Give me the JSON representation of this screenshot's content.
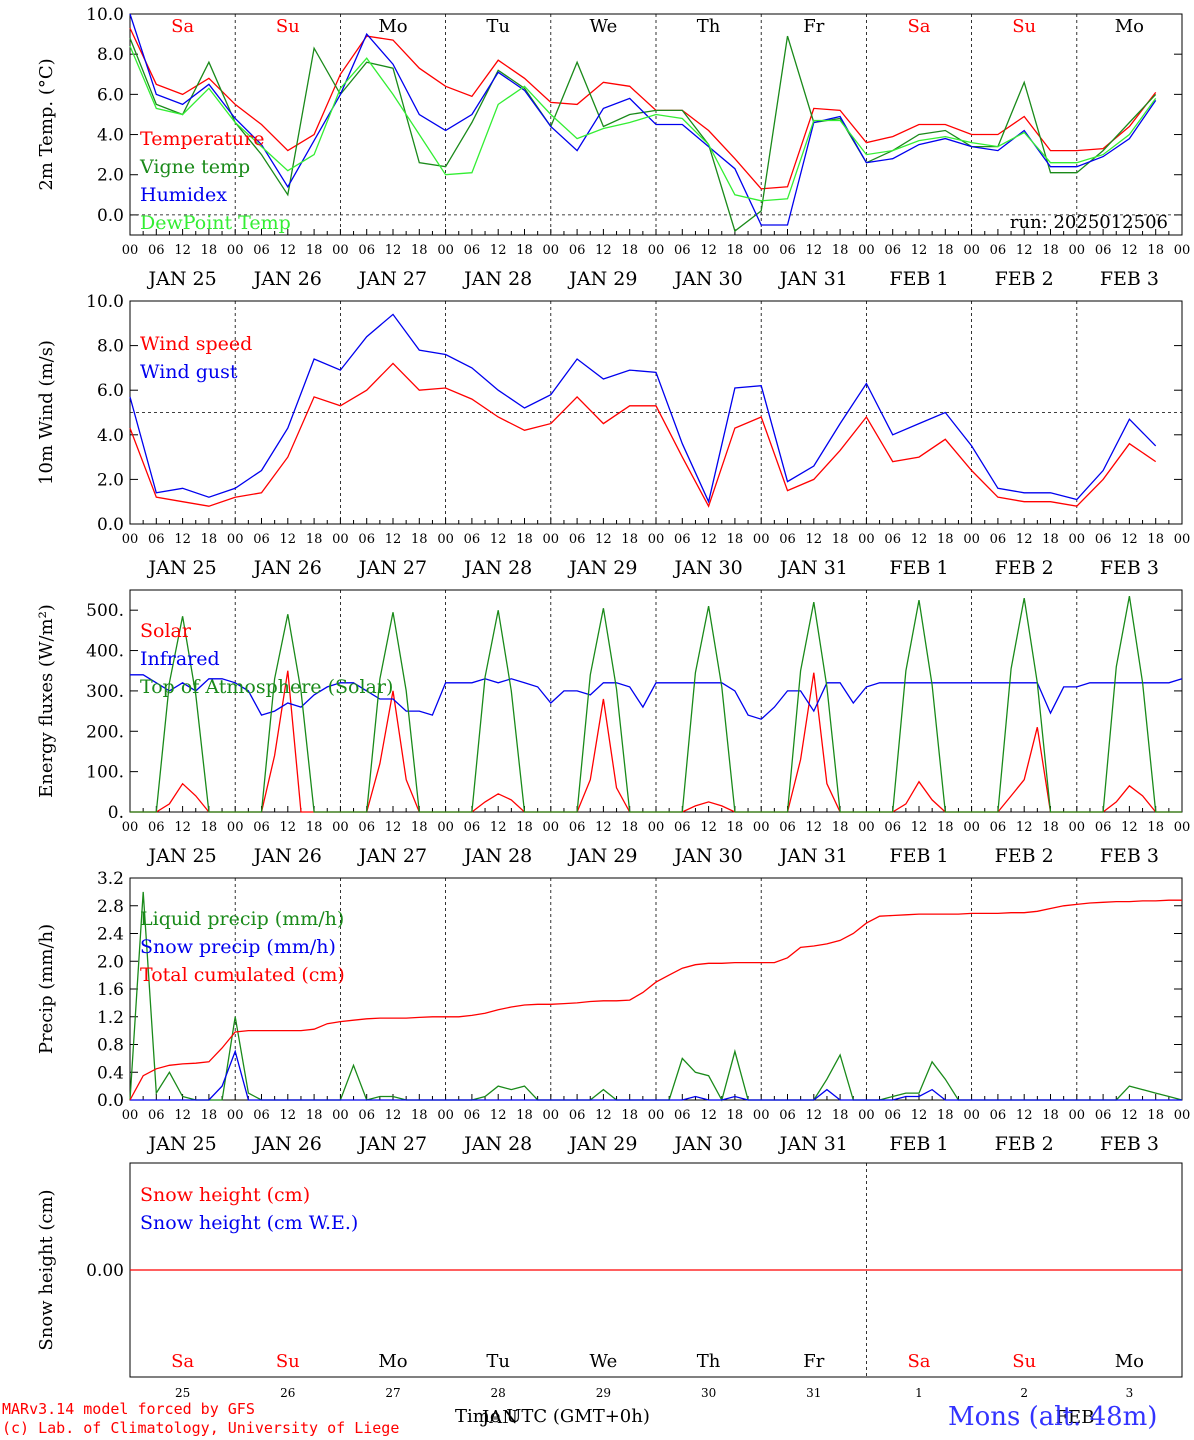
{
  "colors": {
    "red": "#ff0000",
    "green": "#1a8a1a",
    "blue": "#0000ee",
    "lightgreen": "#33ee33",
    "black": "#000000"
  },
  "day_columns": {
    "weekdays": [
      "Sa",
      "Su",
      "Mo",
      "Tu",
      "We",
      "Th",
      "Fr",
      "Sa",
      "Su",
      "Mo"
    ],
    "weekday_colors": [
      "#ff0000",
      "#ff0000",
      "#000000",
      "#000000",
      "#000000",
      "#000000",
      "#000000",
      "#ff0000",
      "#ff0000",
      "#000000"
    ],
    "date_labels": [
      "JAN 25",
      "JAN 26",
      "JAN 27",
      "JAN 28",
      "JAN 29",
      "JAN 30",
      "JAN 31",
      "FEB  1",
      "FEB  2",
      "FEB  3"
    ],
    "hour_labels": [
      "00",
      "06",
      "12",
      "18"
    ],
    "end_hour_label": "00",
    "day_numbers": [
      "25",
      "26",
      "27",
      "28",
      "29",
      "30",
      "31",
      "1",
      "2",
      "3"
    ],
    "month_labels": [
      "JAN",
      "FEB"
    ]
  },
  "footer": {
    "model_line": "MARv3.14 model forced by GFS",
    "lab_line": "(c) Lab. of Climatology, University of Liege",
    "xaxis_title": "Time UTC (GMT+0h)",
    "station": "Mons (alt. 48m)"
  },
  "chart_data": [
    {
      "type": "line",
      "ylabel": "2m Temp. (°C)",
      "ylim": [
        -1,
        10
      ],
      "yticks": [
        "0.0",
        "2.0",
        "4.0",
        "6.0",
        "8.0",
        "10.0"
      ],
      "ytick_values": [
        0,
        2,
        4,
        6,
        8,
        10
      ],
      "reference_line": 0,
      "annotation": "run: 2025012506",
      "x_start": "2025-01-25 00:00 UTC",
      "x_end": "2025-02-04 00:00 UTC",
      "x_step_hours": 6,
      "series": [
        {
          "name": "Temperature",
          "color": "#ff0000",
          "values": [
            9.3,
            6.5,
            6.0,
            6.8,
            5.5,
            4.5,
            3.2,
            4.0,
            7.0,
            8.9,
            8.7,
            7.3,
            6.4,
            5.9,
            7.7,
            6.8,
            5.6,
            5.5,
            6.6,
            6.4,
            5.2,
            5.2,
            4.2,
            2.8,
            1.3,
            1.4,
            5.3,
            5.2,
            3.6,
            3.9,
            4.5,
            4.5,
            4.0,
            4.0,
            4.9,
            3.2,
            3.2,
            3.3,
            4.4,
            6.1
          ]
        },
        {
          "name": "Vigne temp",
          "color": "#1a8a1a",
          "values": [
            8.8,
            5.5,
            5.0,
            7.6,
            4.6,
            3.0,
            1.0,
            8.3,
            6.0,
            7.6,
            7.3,
            2.6,
            2.4,
            4.6,
            7.2,
            6.3,
            4.4,
            7.6,
            4.4,
            5.0,
            5.2,
            5.2,
            3.5,
            -0.8,
            0.2,
            8.9,
            4.6,
            4.8,
            2.6,
            3.2,
            4.0,
            4.2,
            3.4,
            3.4,
            6.6,
            2.1,
            2.1,
            3.2,
            4.6,
            6.0
          ]
        },
        {
          "name": "Humidex",
          "color": "#0000ee",
          "values": [
            10.0,
            6.0,
            5.5,
            6.5,
            4.8,
            3.5,
            1.4,
            3.7,
            6.0,
            9.0,
            7.5,
            5.0,
            4.2,
            5.0,
            7.1,
            6.2,
            4.4,
            3.2,
            5.3,
            5.8,
            4.5,
            4.5,
            3.4,
            2.3,
            -0.5,
            -0.5,
            4.6,
            4.9,
            2.6,
            2.8,
            3.5,
            3.8,
            3.4,
            3.2,
            4.2,
            2.4,
            2.4,
            2.9,
            3.8,
            5.7
          ]
        },
        {
          "name": "DewPoint Temp",
          "color": "#33ee33",
          "values": [
            8.4,
            5.3,
            5.0,
            6.3,
            4.6,
            3.4,
            2.2,
            3.0,
            6.3,
            7.8,
            6.0,
            4.0,
            2.0,
            2.1,
            5.5,
            6.4,
            5.0,
            3.8,
            4.3,
            4.6,
            5.0,
            4.8,
            3.5,
            1.0,
            0.7,
            0.8,
            4.7,
            4.7,
            3.0,
            3.2,
            3.7,
            3.9,
            3.6,
            3.4,
            4.1,
            2.6,
            2.6,
            3.0,
            4.0,
            5.8
          ]
        }
      ]
    },
    {
      "type": "line",
      "ylabel": "10m Wind (m/s)",
      "ylim": [
        0,
        10
      ],
      "yticks": [
        "0.0",
        "2.0",
        "4.0",
        "6.0",
        "8.0",
        "10.0"
      ],
      "ytick_values": [
        0,
        2,
        4,
        6,
        8,
        10
      ],
      "reference_line": 5,
      "x_start": "2025-01-25 00:00 UTC",
      "x_end": "2025-02-04 00:00 UTC",
      "x_step_hours": 6,
      "series": [
        {
          "name": "Wind speed",
          "color": "#ff0000",
          "values": [
            4.3,
            1.2,
            1.0,
            0.8,
            1.2,
            1.4,
            3.0,
            5.7,
            5.3,
            6.0,
            7.2,
            6.0,
            6.1,
            5.6,
            4.8,
            4.2,
            4.5,
            5.7,
            4.5,
            5.3,
            5.3,
            3.0,
            0.8,
            4.3,
            4.8,
            1.5,
            2.0,
            3.3,
            4.8,
            2.8,
            3.0,
            3.8,
            2.4,
            1.2,
            1.0,
            1.0,
            0.8,
            2.0,
            3.6,
            2.8
          ]
        },
        {
          "name": "Wind gust",
          "color": "#0000ee",
          "values": [
            5.7,
            1.4,
            1.6,
            1.2,
            1.6,
            2.4,
            4.3,
            7.4,
            6.9,
            8.4,
            9.4,
            7.8,
            7.6,
            7.0,
            6.0,
            5.2,
            5.8,
            7.4,
            6.5,
            6.9,
            6.8,
            3.6,
            1.0,
            6.1,
            6.2,
            1.9,
            2.6,
            4.5,
            6.3,
            4.0,
            4.5,
            5.0,
            3.5,
            1.6,
            1.4,
            1.4,
            1.1,
            2.4,
            4.7,
            3.5
          ]
        }
      ]
    },
    {
      "type": "line",
      "ylabel": "Energy fluxes (W/m²)",
      "ylim": [
        0,
        550
      ],
      "yticks": [
        "0.",
        "100.",
        "200.",
        "300.",
        "400.",
        "500."
      ],
      "ytick_values": [
        0,
        100,
        200,
        300,
        400,
        500
      ],
      "x_start": "2025-01-25 00:00 UTC",
      "x_end": "2025-02-04 00:00 UTC",
      "x_step_hours": 3,
      "series": [
        {
          "name": "Solar",
          "color": "#ff0000",
          "values": [
            0,
            0,
            0,
            20,
            70,
            40,
            0,
            0,
            0,
            0,
            0,
            140,
            350,
            0,
            0,
            0,
            0,
            0,
            0,
            120,
            300,
            80,
            0,
            0,
            0,
            0,
            0,
            25,
            45,
            30,
            0,
            0,
            0,
            0,
            0,
            80,
            280,
            60,
            0,
            0,
            0,
            0,
            0,
            15,
            25,
            15,
            0,
            0,
            0,
            0,
            0,
            130,
            345,
            70,
            0,
            0,
            0,
            0,
            0,
            20,
            75,
            30,
            0,
            0,
            0,
            0,
            0,
            40,
            80,
            210,
            0,
            0,
            0,
            0,
            0,
            25,
            65,
            40,
            0,
            0,
            0
          ]
        },
        {
          "name": "Infrared",
          "color": "#0000ee",
          "values": [
            340,
            340,
            320,
            300,
            320,
            300,
            330,
            330,
            320,
            300,
            240,
            250,
            270,
            260,
            290,
            310,
            320,
            320,
            300,
            280,
            280,
            250,
            250,
            240,
            320,
            320,
            320,
            330,
            320,
            330,
            320,
            310,
            270,
            300,
            300,
            290,
            320,
            320,
            310,
            260,
            320,
            320,
            320,
            320,
            320,
            320,
            300,
            240,
            230,
            260,
            300,
            300,
            250,
            320,
            320,
            270,
            310,
            320,
            320,
            320,
            320,
            320,
            320,
            320,
            320,
            320,
            320,
            320,
            320,
            320,
            245,
            310,
            310,
            320,
            320,
            320,
            320,
            320,
            320,
            320,
            330
          ]
        },
        {
          "name": "Top of Atmosphere (Solar)",
          "color": "#1a8a1a",
          "values": [
            0,
            0,
            0,
            320,
            485,
            290,
            0,
            0,
            0,
            0,
            0,
            330,
            490,
            300,
            0,
            0,
            0,
            0,
            0,
            330,
            495,
            300,
            0,
            0,
            0,
            0,
            0,
            335,
            500,
            300,
            0,
            0,
            0,
            0,
            0,
            340,
            505,
            305,
            0,
            0,
            0,
            0,
            0,
            345,
            510,
            310,
            0,
            0,
            0,
            0,
            0,
            350,
            520,
            310,
            0,
            0,
            0,
            0,
            0,
            350,
            525,
            315,
            0,
            0,
            0,
            0,
            0,
            355,
            530,
            320,
            0,
            0,
            0,
            0,
            0,
            360,
            535,
            320,
            0,
            0,
            0
          ]
        }
      ]
    },
    {
      "type": "line",
      "ylabel": "Precip (mm/h)",
      "ylim": [
        0,
        3.2
      ],
      "yticks": [
        "0.0",
        "0.4",
        "0.8",
        "1.2",
        "1.6",
        "2.0",
        "2.4",
        "2.8",
        "3.2"
      ],
      "ytick_values": [
        0,
        0.4,
        0.8,
        1.2,
        1.6,
        2.0,
        2.4,
        2.8,
        3.2
      ],
      "x_start": "2025-01-25 00:00 UTC",
      "x_end": "2025-02-04 00:00 UTC",
      "x_step_hours": 3,
      "series": [
        {
          "name": "Liquid precip (mm/h)",
          "color": "#1a8a1a",
          "values": [
            0,
            3.0,
            0.1,
            0.4,
            0.05,
            0,
            0,
            0,
            1.2,
            0.1,
            0,
            0,
            0,
            0,
            0,
            0,
            0,
            0.5,
            0,
            0.05,
            0.05,
            0,
            0,
            0,
            0,
            0,
            0,
            0.05,
            0.2,
            0.15,
            0.2,
            0,
            0,
            0,
            0,
            0,
            0.15,
            0,
            0,
            0,
            0,
            0,
            0.6,
            0.4,
            0.35,
            0,
            0.7,
            0,
            0,
            0,
            0,
            0,
            0,
            0.3,
            0.65,
            0,
            0,
            0,
            0.05,
            0.1,
            0.1,
            0.55,
            0.3,
            0,
            0,
            0,
            0,
            0,
            0,
            0,
            0,
            0,
            0,
            0,
            0,
            0,
            0.2,
            0.15,
            0.1,
            0.05,
            0
          ]
        },
        {
          "name": "Snow precip (mm/h)",
          "color": "#0000ee",
          "values": [
            0,
            0,
            0,
            0,
            0,
            0,
            0,
            0.2,
            0.7,
            0,
            0,
            0,
            0,
            0,
            0,
            0,
            0,
            0,
            0,
            0,
            0,
            0,
            0,
            0,
            0,
            0,
            0,
            0,
            0,
            0,
            0,
            0,
            0,
            0,
            0,
            0,
            0,
            0,
            0,
            0,
            0,
            0,
            0,
            0.05,
            0,
            0,
            0.05,
            0,
            0,
            0,
            0,
            0,
            0,
            0.15,
            0,
            0,
            0,
            0,
            0,
            0.05,
            0.05,
            0.15,
            0,
            0,
            0,
            0,
            0,
            0,
            0,
            0,
            0,
            0,
            0,
            0,
            0,
            0,
            0,
            0,
            0,
            0,
            0
          ]
        },
        {
          "name": "Total cumulated (cm)",
          "color": "#ff0000",
          "values": [
            0,
            0.35,
            0.45,
            0.5,
            0.52,
            0.53,
            0.55,
            0.75,
            0.98,
            1.0,
            1.0,
            1.0,
            1.0,
            1.0,
            1.02,
            1.1,
            1.13,
            1.15,
            1.17,
            1.18,
            1.18,
            1.18,
            1.19,
            1.2,
            1.2,
            1.2,
            1.22,
            1.25,
            1.3,
            1.34,
            1.37,
            1.38,
            1.38,
            1.39,
            1.4,
            1.42,
            1.43,
            1.43,
            1.44,
            1.55,
            1.7,
            1.8,
            1.9,
            1.95,
            1.97,
            1.97,
            1.98,
            1.98,
            1.98,
            1.98,
            2.05,
            2.2,
            2.22,
            2.25,
            2.3,
            2.4,
            2.55,
            2.65,
            2.66,
            2.67,
            2.68,
            2.68,
            2.68,
            2.68,
            2.69,
            2.69,
            2.69,
            2.7,
            2.7,
            2.72,
            2.76,
            2.8,
            2.82,
            2.84,
            2.85,
            2.86,
            2.86,
            2.87,
            2.87,
            2.88,
            2.88
          ]
        }
      ]
    },
    {
      "type": "line",
      "ylabel": "Snow height (cm)",
      "ylim": [
        -1,
        1
      ],
      "yticks": [
        "0.00"
      ],
      "ytick_values": [
        0
      ],
      "x_start": "2025-01-25 00:00 UTC",
      "x_end": "2025-02-04 00:00 UTC",
      "x_step_hours": 24,
      "series": [
        {
          "name": "Snow height (cm)",
          "color": "#ff0000",
          "values": [
            0,
            0,
            0,
            0,
            0,
            0,
            0,
            0,
            0,
            0,
            0
          ]
        },
        {
          "name": "Snow height (cm W.E.)",
          "color": "#0000ee",
          "values": []
        }
      ]
    }
  ]
}
